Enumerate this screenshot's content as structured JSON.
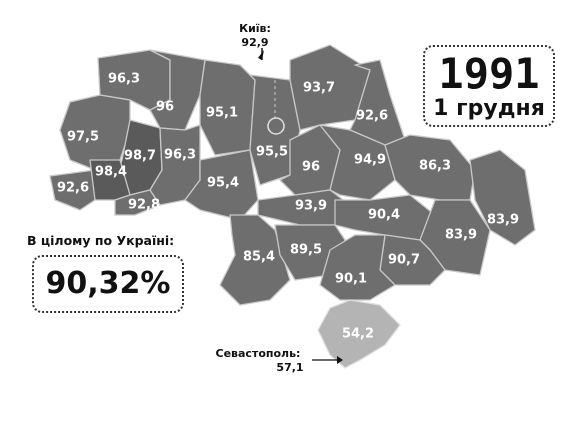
{
  "header": {
    "year": "1991",
    "date": "1 грудня"
  },
  "total": {
    "label": "В цілому по Україні:",
    "value": "90,32%"
  },
  "cities": {
    "kyiv": {
      "name": "Київ:",
      "value": "92,9"
    },
    "sevastopol": {
      "name": "Севастополь:",
      "value": "57,1"
    }
  },
  "regions": [
    {
      "id": "volyn",
      "value": "96,3"
    },
    {
      "id": "rivne",
      "value": "96"
    },
    {
      "id": "lviv",
      "value": "97,5"
    },
    {
      "id": "ternopil",
      "value": "98,7"
    },
    {
      "id": "zakarpattia",
      "value": "92,6"
    },
    {
      "id": "ivano-frankivsk",
      "value": "98,4"
    },
    {
      "id": "chernivtsi",
      "value": "92,8"
    },
    {
      "id": "khmelnytskyi",
      "value": "96,3"
    },
    {
      "id": "zhytomyr",
      "value": "95,1"
    },
    {
      "id": "vinnytsia",
      "value": "95,4"
    },
    {
      "id": "kyiv-oblast",
      "value": "95,5"
    },
    {
      "id": "chernihiv",
      "value": "93,7"
    },
    {
      "id": "sumy",
      "value": "92,6"
    },
    {
      "id": "cherkasy",
      "value": "96"
    },
    {
      "id": "poltava",
      "value": "94,9"
    },
    {
      "id": "kharkiv",
      "value": "86,3"
    },
    {
      "id": "kirovohrad",
      "value": "93,9"
    },
    {
      "id": "dnipropetrovsk",
      "value": "90,4"
    },
    {
      "id": "odesa",
      "value": "85,4"
    },
    {
      "id": "mykolaiv",
      "value": "89,5"
    },
    {
      "id": "donetsk",
      "value": "83,9"
    },
    {
      "id": "luhansk",
      "value": "83,9"
    },
    {
      "id": "zaporizhzhia",
      "value": "90,7"
    },
    {
      "id": "kherson",
      "value": "90,1"
    },
    {
      "id": "crimea",
      "value": "54,2"
    }
  ],
  "colors": {
    "region_fill": "#6e6e6e",
    "highlight_fill": "#5a5a5a",
    "crimea_fill": "#b4b4b4",
    "border": "#c8c8c8"
  }
}
